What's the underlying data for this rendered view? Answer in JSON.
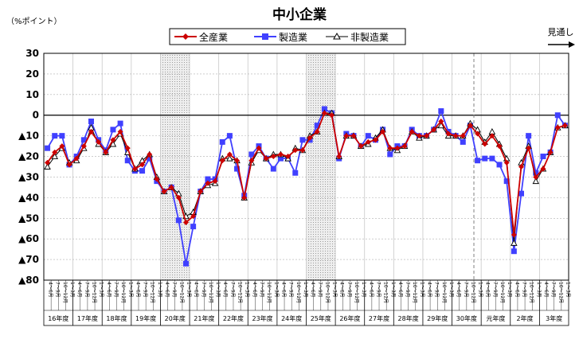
{
  "chart_data": {
    "type": "line",
    "title": "中小企業",
    "unit_label": "（%ポイント）",
    "forecast_label": "見通し",
    "ylim": [
      -80,
      30
    ],
    "yticks": [
      {
        "value": 30,
        "label": "30"
      },
      {
        "value": 20,
        "label": "20"
      },
      {
        "value": 10,
        "label": "10"
      },
      {
        "value": 0,
        "label": "0"
      },
      {
        "value": -10,
        "label": "▲10"
      },
      {
        "value": -20,
        "label": "▲20"
      },
      {
        "value": -30,
        "label": "▲30"
      },
      {
        "value": -40,
        "label": "▲40"
      },
      {
        "value": -50,
        "label": "▲50"
      },
      {
        "value": -60,
        "label": "▲60"
      },
      {
        "value": -70,
        "label": "▲70"
      },
      {
        "value": -80,
        "label": "▲80"
      }
    ],
    "quarter_labels": [
      "4～6月",
      "7～9月",
      "10～12月",
      "1～3月"
    ],
    "fiscal_years": [
      "16年度",
      "17年度",
      "18年度",
      "19年度",
      "20年度",
      "21年度",
      "22年度",
      "23年度",
      "24年度",
      "25年度",
      "26年度",
      "27年度",
      "28年度",
      "29年度",
      "30年度",
      "元年度",
      "2年度",
      "3年度"
    ],
    "shaded_ranges": [
      [
        16,
        19
      ],
      [
        36,
        39
      ]
    ],
    "forecast_divider_index": 59,
    "series": [
      {
        "name": "全産業",
        "color": "#cc0000",
        "marker": "diamond",
        "values": [
          -23,
          -18,
          -15,
          -24,
          -21,
          -15,
          -8,
          -13,
          -18,
          -12,
          -8,
          -16,
          -26,
          -24,
          -19,
          -31,
          -37,
          -35,
          -40,
          -52,
          -49,
          -37,
          -33,
          -32,
          -22,
          -19,
          -22,
          -40,
          -22,
          -16,
          -21,
          -20,
          -19,
          -20,
          -17,
          -17,
          -11,
          -8,
          1,
          0,
          -20,
          -10,
          -10,
          -15,
          -13,
          -12,
          -8,
          -16,
          -16,
          -15,
          -8,
          -10,
          -10,
          -7,
          -3,
          -9,
          -10,
          -10,
          -5,
          -9,
          -14,
          -10,
          -15,
          -23,
          -58,
          -25,
          -16,
          -30,
          -26,
          -18,
          -6,
          -5
        ]
      },
      {
        "name": "製造業",
        "color": "#4040ff",
        "marker": "square",
        "values": [
          -16,
          -10,
          -10,
          -24,
          -20,
          -12,
          -3,
          -12,
          -17,
          -7,
          -4,
          -22,
          -27,
          -27,
          -21,
          -32,
          -37,
          -35,
          -51,
          -72,
          -54,
          -37,
          -31,
          -31,
          -13,
          -10,
          -26,
          -39,
          -19,
          -15,
          -21,
          -26,
          -21,
          -21,
          -28,
          -12,
          -12,
          -5,
          3,
          1,
          -21,
          -9,
          -10,
          -15,
          -10,
          -12,
          -7,
          -19,
          -15,
          -15,
          -7,
          -10,
          -10,
          -7,
          2,
          -8,
          -10,
          -13,
          -5,
          -22,
          -21,
          -21,
          -24,
          -32,
          -66,
          -38,
          -10,
          -28,
          -20,
          -18,
          0,
          -5
        ]
      },
      {
        "name": "非製造業",
        "color": "#000000",
        "marker": "triangle",
        "values": [
          -25,
          -20,
          -16,
          -23,
          -22,
          -16,
          -6,
          -14,
          -18,
          -14,
          -9,
          -18,
          -26,
          -22,
          -19,
          -30,
          -37,
          -35,
          -38,
          -49,
          -47,
          -37,
          -34,
          -33,
          -21,
          -21,
          -22,
          -40,
          -23,
          -17,
          -21,
          -19,
          -19,
          -21,
          -16,
          -17,
          -10,
          -8,
          1,
          1,
          -20,
          -10,
          -10,
          -15,
          -14,
          -11,
          -7,
          -16,
          -17,
          -15,
          -8,
          -11,
          -10,
          -7,
          -5,
          -10,
          -10,
          -10,
          -4,
          -7,
          -13,
          -8,
          -14,
          -21,
          -62,
          -23,
          -15,
          -32,
          -26,
          -18,
          -6,
          -5
        ]
      }
    ]
  }
}
